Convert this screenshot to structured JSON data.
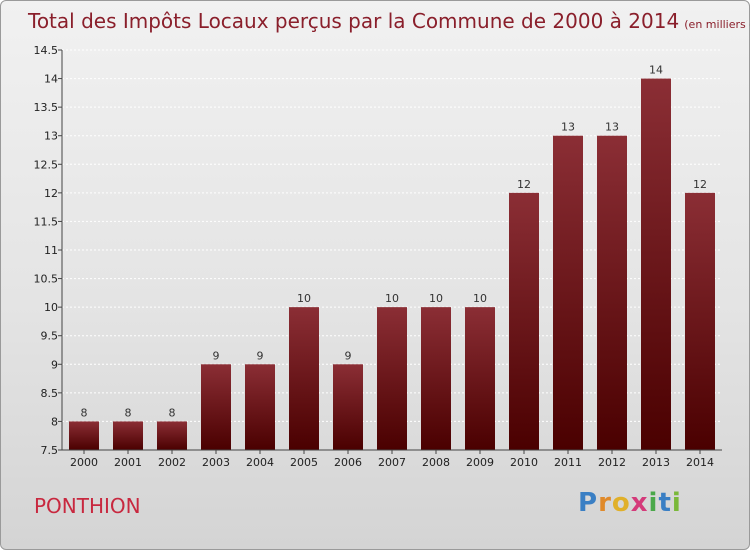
{
  "chart_data": {
    "type": "bar",
    "title": "Total des Impôts Locaux perçus par la Commune de 2000 à 2014",
    "unit": "(en milliers d'€)",
    "categories": [
      "2000",
      "2001",
      "2002",
      "2003",
      "2004",
      "2005",
      "2006",
      "2007",
      "2008",
      "2009",
      "2010",
      "2011",
      "2012",
      "2013",
      "2014"
    ],
    "values": [
      8,
      8,
      8,
      9,
      9,
      10,
      9,
      10,
      10,
      10,
      12,
      13,
      13,
      14,
      12
    ],
    "data_labels": [
      "8",
      "8",
      "8",
      "9",
      "9",
      "10",
      "9",
      "10",
      "10",
      "10",
      "12",
      "13",
      "13",
      "14",
      "12"
    ],
    "ylim": [
      7.5,
      14.5
    ],
    "yticks": [
      7.5,
      8,
      8.5,
      9,
      9.5,
      10,
      10.5,
      11,
      11.5,
      12,
      12.5,
      13,
      13.5,
      14,
      14.5
    ],
    "ytick_labels": [
      "7.5",
      "8",
      "8.5",
      "9",
      "9.5",
      "10",
      "10.5",
      "11",
      "11.5",
      "12",
      "12.5",
      "13",
      "13.5",
      "14",
      "14.5"
    ],
    "xlabel": "",
    "ylabel": "",
    "grid": true,
    "bar_color_top": "#8b2e35",
    "bar_color_bottom": "#4a0000"
  },
  "commune": "PONTHION",
  "brand": {
    "letters": [
      "P",
      "r",
      "o",
      "x",
      "i",
      "t",
      "i"
    ],
    "colors": [
      "#3a7fc4",
      "#e08a2a",
      "#e0b02a",
      "#d43a7a",
      "#4aa84a",
      "#3a7fc4",
      "#7ab83a"
    ]
  }
}
